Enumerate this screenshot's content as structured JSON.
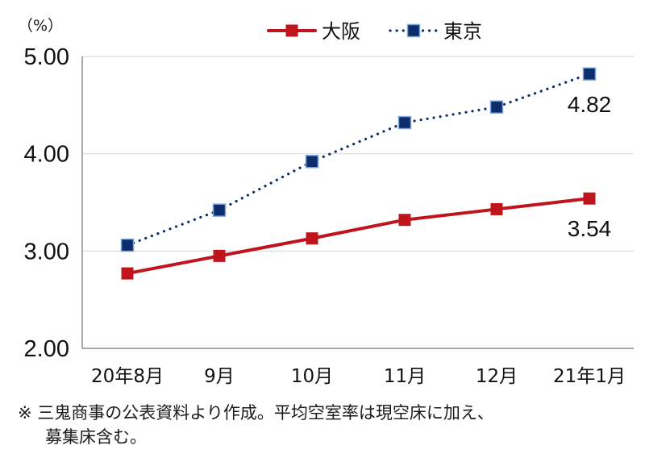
{
  "chart_data": {
    "type": "line",
    "y_unit_label": "（%）",
    "categories": [
      "20年8月",
      "9月",
      "10月",
      "11月",
      "12月",
      "21年1月"
    ],
    "ylim": [
      2.0,
      5.0
    ],
    "yticks": [
      "2.00",
      "3.00",
      "4.00",
      "5.00"
    ],
    "ytick_values": [
      2.0,
      3.0,
      4.0,
      5.0
    ],
    "grid": true,
    "legend_position": "top",
    "series": [
      {
        "name": "大阪",
        "values": [
          2.77,
          2.95,
          3.13,
          3.32,
          3.43,
          3.54
        ],
        "color": "#c0141c",
        "style": "solid",
        "end_label": "3.54"
      },
      {
        "name": "東京",
        "values": [
          3.06,
          3.42,
          3.92,
          4.32,
          4.48,
          4.82
        ],
        "color": "#0b2d6b",
        "marker_edge": "#7fa6d8",
        "style": "dotted",
        "end_label": "4.82"
      }
    ]
  },
  "notes": {
    "line1": "※ 三鬼商事の公表資料より作成。平均空室率は現空床に加え、",
    "line2": "募集床含む。"
  }
}
